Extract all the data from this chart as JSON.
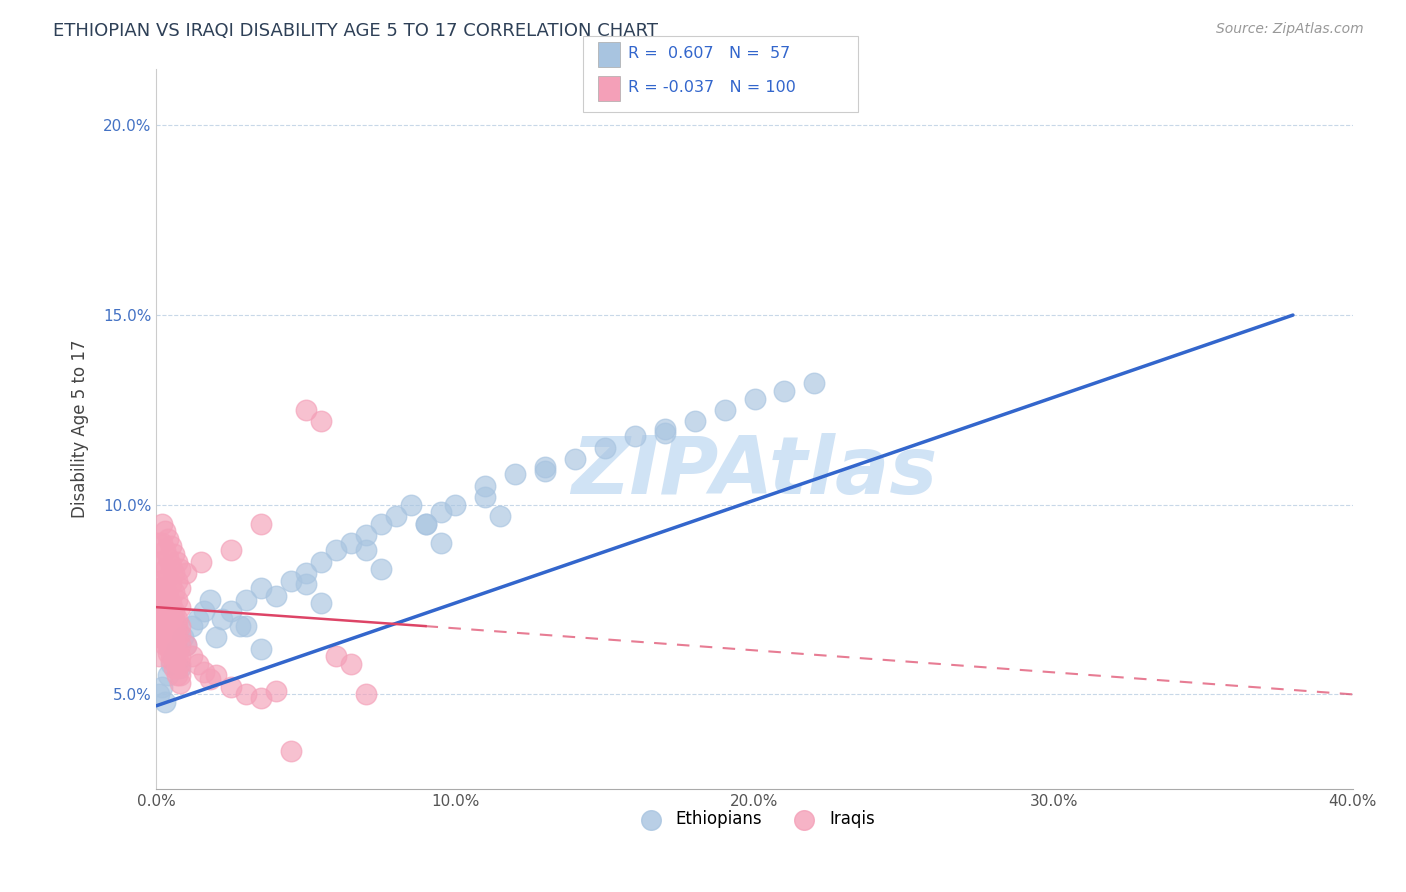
{
  "title": "ETHIOPIAN VS IRAQI DISABILITY AGE 5 TO 17 CORRELATION CHART",
  "source": "Source: ZipAtlas.com",
  "ylabel": "Disability Age 5 to 17",
  "xlim": [
    0.0,
    0.4
  ],
  "ylim": [
    0.025,
    0.215
  ],
  "xticks": [
    0.0,
    0.1,
    0.2,
    0.3,
    0.4
  ],
  "yticks": [
    0.05,
    0.1,
    0.15,
    0.2
  ],
  "ytick_labels": [
    "5.0%",
    "10.0%",
    "15.0%",
    "20.0%"
  ],
  "xtick_labels": [
    "0.0%",
    "10.0%",
    "20.0%",
    "30.0%",
    "40.0%"
  ],
  "title_color": "#2E4057",
  "title_fontsize": 13,
  "watermark": "ZIPAtlas",
  "watermark_color": "#aaccee",
  "r_ethiopian": 0.607,
  "n_ethiopian": 57,
  "r_iraqi": -0.037,
  "n_iraqi": 100,
  "ethiopian_color": "#a8c4e0",
  "iraqi_color": "#f4a0b8",
  "ethiopian_line_color": "#3366cc",
  "iraqi_line_color": "#dd4466",
  "background_color": "#ffffff",
  "grid_color": "#c8d8e8",
  "eth_x": [
    0.001,
    0.002,
    0.003,
    0.004,
    0.005,
    0.006,
    0.007,
    0.008,
    0.009,
    0.01,
    0.012,
    0.014,
    0.016,
    0.018,
    0.02,
    0.022,
    0.025,
    0.028,
    0.03,
    0.035,
    0.04,
    0.045,
    0.05,
    0.055,
    0.06,
    0.065,
    0.07,
    0.075,
    0.08,
    0.085,
    0.09,
    0.095,
    0.1,
    0.11,
    0.12,
    0.13,
    0.14,
    0.15,
    0.16,
    0.17,
    0.18,
    0.19,
    0.2,
    0.21,
    0.03,
    0.05,
    0.07,
    0.09,
    0.11,
    0.13,
    0.035,
    0.055,
    0.075,
    0.095,
    0.115,
    0.22,
    0.17
  ],
  "eth_y": [
    0.05,
    0.052,
    0.048,
    0.055,
    0.058,
    0.06,
    0.062,
    0.057,
    0.065,
    0.063,
    0.068,
    0.07,
    0.072,
    0.075,
    0.065,
    0.07,
    0.072,
    0.068,
    0.075,
    0.078,
    0.076,
    0.08,
    0.082,
    0.085,
    0.088,
    0.09,
    0.092,
    0.095,
    0.097,
    0.1,
    0.095,
    0.098,
    0.1,
    0.105,
    0.108,
    0.11,
    0.112,
    0.115,
    0.118,
    0.12,
    0.122,
    0.125,
    0.128,
    0.13,
    0.068,
    0.079,
    0.088,
    0.095,
    0.102,
    0.109,
    0.062,
    0.074,
    0.083,
    0.09,
    0.097,
    0.132,
    0.119
  ],
  "ira_x": [
    0.001,
    0.001,
    0.001,
    0.001,
    0.001,
    0.001,
    0.001,
    0.001,
    0.001,
    0.001,
    0.002,
    0.002,
    0.002,
    0.002,
    0.002,
    0.002,
    0.002,
    0.002,
    0.002,
    0.002,
    0.003,
    0.003,
    0.003,
    0.003,
    0.003,
    0.003,
    0.003,
    0.003,
    0.003,
    0.003,
    0.004,
    0.004,
    0.004,
    0.004,
    0.004,
    0.004,
    0.004,
    0.004,
    0.004,
    0.004,
    0.005,
    0.005,
    0.005,
    0.005,
    0.005,
    0.005,
    0.005,
    0.005,
    0.005,
    0.005,
    0.006,
    0.006,
    0.006,
    0.006,
    0.006,
    0.006,
    0.006,
    0.006,
    0.006,
    0.006,
    0.007,
    0.007,
    0.007,
    0.007,
    0.007,
    0.007,
    0.007,
    0.007,
    0.007,
    0.007,
    0.008,
    0.008,
    0.008,
    0.008,
    0.008,
    0.008,
    0.008,
    0.008,
    0.008,
    0.008,
    0.01,
    0.012,
    0.014,
    0.016,
    0.018,
    0.02,
    0.025,
    0.03,
    0.035,
    0.04,
    0.05,
    0.055,
    0.06,
    0.065,
    0.035,
    0.025,
    0.015,
    0.01,
    0.045,
    0.07
  ],
  "ira_y": [
    0.07,
    0.075,
    0.08,
    0.065,
    0.085,
    0.06,
    0.09,
    0.072,
    0.068,
    0.078,
    0.075,
    0.08,
    0.07,
    0.085,
    0.065,
    0.09,
    0.072,
    0.095,
    0.068,
    0.078,
    0.073,
    0.078,
    0.068,
    0.083,
    0.063,
    0.088,
    0.07,
    0.093,
    0.065,
    0.076,
    0.071,
    0.076,
    0.066,
    0.081,
    0.061,
    0.086,
    0.068,
    0.091,
    0.063,
    0.074,
    0.069,
    0.074,
    0.064,
    0.079,
    0.059,
    0.084,
    0.066,
    0.089,
    0.061,
    0.072,
    0.067,
    0.072,
    0.062,
    0.077,
    0.057,
    0.082,
    0.064,
    0.087,
    0.059,
    0.07,
    0.065,
    0.07,
    0.06,
    0.075,
    0.055,
    0.08,
    0.062,
    0.085,
    0.057,
    0.068,
    0.063,
    0.068,
    0.058,
    0.073,
    0.053,
    0.078,
    0.06,
    0.083,
    0.055,
    0.066,
    0.063,
    0.06,
    0.058,
    0.056,
    0.054,
    0.055,
    0.052,
    0.05,
    0.049,
    0.051,
    0.125,
    0.122,
    0.06,
    0.058,
    0.095,
    0.088,
    0.085,
    0.082,
    0.035,
    0.05
  ],
  "eth_line_x0": 0.0,
  "eth_line_x1": 0.38,
  "eth_line_y0": 0.047,
  "eth_line_y1": 0.15,
  "ira_line_solid_x0": 0.0,
  "ira_line_solid_x1": 0.09,
  "ira_line_y0": 0.073,
  "ira_line_y1": 0.068,
  "ira_line_dash_x0": 0.09,
  "ira_line_dash_x1": 0.4,
  "ira_line_dash_y0": 0.068,
  "ira_line_dash_y1": 0.05
}
